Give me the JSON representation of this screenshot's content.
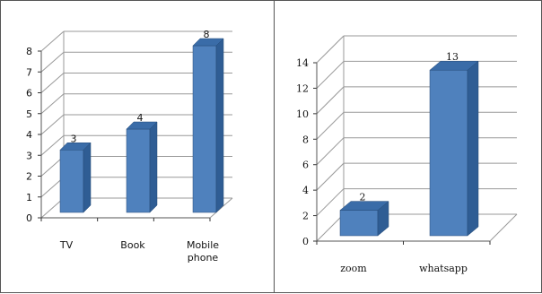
{
  "chart_data": [
    {
      "type": "bar",
      "categories": [
        "TV",
        "Book",
        "Mobile phone"
      ],
      "values": [
        3,
        4,
        8
      ],
      "data_labels": [
        "3",
        "4",
        "8"
      ],
      "ylim": [
        0,
        8
      ],
      "yticks": [
        "0",
        "1",
        "2",
        "3",
        "4",
        "5",
        "6",
        "7",
        "8"
      ],
      "grid": true,
      "three_d": true,
      "color": "#4F81BD"
    },
    {
      "type": "bar",
      "categories": [
        "zoom",
        "whatsapp"
      ],
      "values": [
        2,
        13
      ],
      "data_labels": [
        "2",
        "13"
      ],
      "ylim": [
        0,
        14
      ],
      "yticks": [
        "0",
        "2",
        "4",
        "6",
        "8",
        "10",
        "12",
        "14"
      ],
      "grid": true,
      "three_d": true,
      "color": "#4F81BD"
    }
  ]
}
